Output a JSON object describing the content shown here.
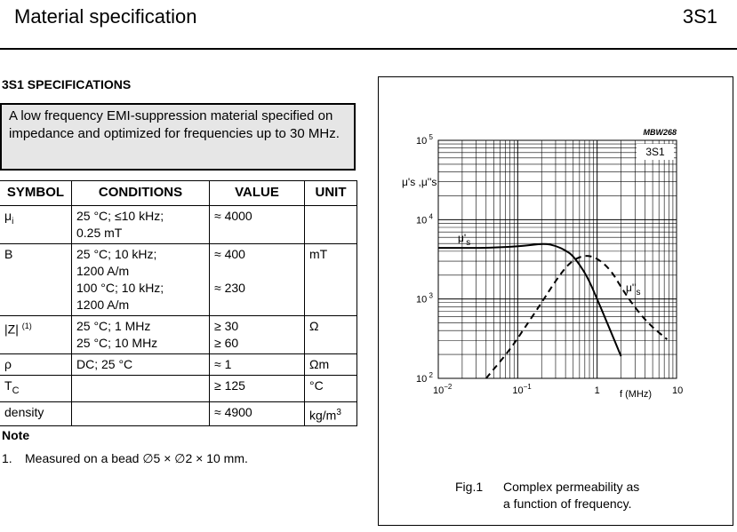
{
  "header": {
    "title": "Material specification",
    "code": "3S1"
  },
  "section_title": "3S1 SPECIFICATIONS",
  "summary": "A low frequency EMI-suppression material specified on impedance and optimized for frequencies up to 30 MHz.",
  "table": {
    "headers": [
      "SYMBOL",
      "CONDITIONS",
      "VALUE",
      "UNIT"
    ],
    "rows": [
      {
        "symbol": "μ",
        "symbol_sub": "i",
        "conditions": [
          "25 °C; ≤10 kHz;",
          "0.25 mT"
        ],
        "values": [
          "≈ 4000"
        ],
        "unit": ""
      },
      {
        "symbol": "B",
        "conditions": [
          "25 °C; 10 kHz;",
          "1200 A/m"
        ],
        "conditions2": [
          "100 °C; 10 kHz;",
          "1200 A/m"
        ],
        "values": [
          "≈ 400",
          "≈ 230"
        ],
        "unit": "mT"
      },
      {
        "symbol": "|Z|",
        "symbol_sup": "(1)",
        "conditions": [
          "25 °C; 1 MHz",
          "25 °C; 10 MHz"
        ],
        "values": [
          "≥ 30",
          "≥ 60"
        ],
        "unit": "Ω"
      },
      {
        "symbol": "ρ",
        "conditions": [
          "DC; 25 °C"
        ],
        "values": [
          "≈ 1"
        ],
        "unit": "Ωm"
      },
      {
        "symbol": "T",
        "symbol_sub": "C",
        "conditions": [
          ""
        ],
        "values": [
          "≥ 125"
        ],
        "unit": "°C"
      },
      {
        "symbol": "density",
        "conditions": [
          ""
        ],
        "values": [
          "≈ 4900"
        ],
        "unit": "kg/m",
        "unit_sup": "3"
      }
    ]
  },
  "note": {
    "heading": "Note",
    "items": [
      {
        "num": "1.",
        "text": "Measured on a bead ∅5 × ∅2 × 10 mm."
      }
    ]
  },
  "figure": {
    "caption_label": "Fig.1",
    "caption_line1": "Complex permeability as",
    "caption_line2": "a function of frequency."
  },
  "chart_data": {
    "type": "line",
    "title": "Complex permeability as a function of frequency",
    "id_label": "MBW268",
    "material_label": "3S1",
    "xlabel": "f  (MHz)",
    "ylabel": "μ's ,μ''s",
    "x_scale": "log",
    "y_scale": "log",
    "xlim": [
      0.01,
      10
    ],
    "ylim": [
      100,
      100000
    ],
    "x_ticks": [
      {
        "base": "10",
        "exp": "−2"
      },
      {
        "base": "10",
        "exp": "−1"
      },
      {
        "base": "1",
        "exp": ""
      },
      {
        "base": "10",
        "exp": ""
      }
    ],
    "y_ticks": [
      {
        "base": "10",
        "exp": "5"
      },
      {
        "base": "10",
        "exp": "4"
      },
      {
        "base": "10",
        "exp": "3"
      },
      {
        "base": "10",
        "exp": "2"
      }
    ],
    "grid": true,
    "series": [
      {
        "name": "μ's",
        "label_main": "μ'",
        "label_sub": "s",
        "style": "solid",
        "x": [
          0.01,
          0.03,
          0.05,
          0.1,
          0.15,
          0.22,
          0.3,
          0.4,
          0.5,
          0.74,
          1.0,
          1.4,
          2.0
        ],
        "y": [
          4400,
          4400,
          4450,
          4600,
          4800,
          5000,
          4700,
          4100,
          3500,
          2000,
          1000,
          450,
          190
        ]
      },
      {
        "name": "μ''s",
        "label_main": "μ''",
        "label_sub": "s",
        "style": "dashed",
        "x": [
          0.04,
          0.08,
          0.12,
          0.2,
          0.3,
          0.45,
          0.68,
          1.0,
          1.5,
          2.1,
          3.0,
          4.5,
          7.6
        ],
        "y": [
          100,
          230,
          420,
          900,
          1700,
          2900,
          3600,
          3300,
          2300,
          1300,
          780,
          480,
          310
        ]
      }
    ]
  }
}
